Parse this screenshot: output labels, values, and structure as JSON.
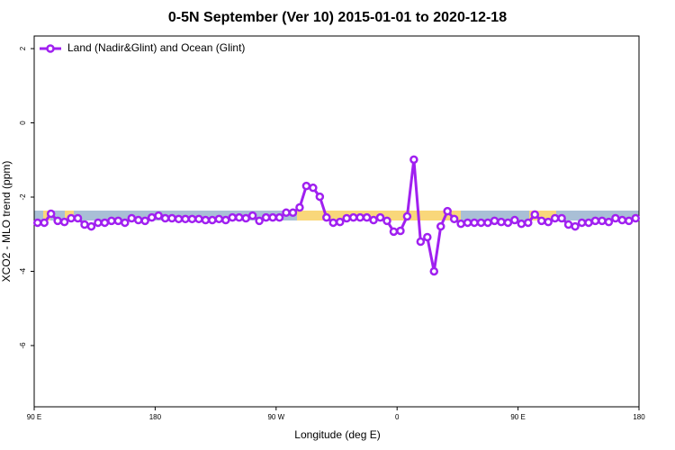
{
  "chart_data": {
    "type": "line",
    "title": "0-5N September (Ver 10)   2015-01-01 to 2020-12-18",
    "x_label": "Longitude (deg E)",
    "y_label": "XCO2 - MLO trend (ppm)",
    "xlim": [
      90,
      540
    ],
    "ylim": [
      -7.65,
      2.34
    ],
    "xticks": [
      {
        "value": 90,
        "label": "90 E"
      },
      {
        "value": 180,
        "label": "180"
      },
      {
        "value": 270,
        "label": "90 W"
      },
      {
        "value": 360,
        "label": "0"
      },
      {
        "value": 450,
        "label": "90 E"
      },
      {
        "value": 540,
        "label": "180"
      }
    ],
    "yticks": [
      -6,
      -4,
      -2,
      0,
      2
    ],
    "legend": "top-left",
    "x": [
      92.5,
      97.5,
      102.5,
      107.5,
      112.5,
      117.5,
      122.5,
      127.5,
      132.5,
      137.5,
      142.5,
      147.5,
      152.5,
      157.5,
      162.5,
      167.5,
      172.5,
      177.5,
      182.5,
      187.5,
      192.5,
      197.5,
      202.5,
      207.5,
      212.5,
      217.5,
      222.5,
      227.5,
      232.5,
      237.5,
      242.5,
      247.5,
      252.5,
      257.5,
      262.5,
      267.5,
      272.5,
      277.5,
      282.5,
      287.5,
      292.5,
      297.5,
      302.5,
      307.5,
      312.5,
      317.5,
      322.5,
      327.5,
      332.5,
      337.5,
      342.5,
      347.5,
      352.5,
      357.5,
      362.5,
      367.5,
      372.5,
      377.5,
      382.5,
      387.5,
      392.5,
      397.5,
      402.5,
      407.5,
      412.5,
      417.5,
      422.5,
      427.5,
      432.5,
      437.5,
      442.5,
      447.5,
      452.5,
      457.5,
      462.5,
      467.5,
      472.5,
      477.5,
      482.5,
      487.5,
      492.5,
      497.5,
      502.5,
      507.5,
      512.5,
      517.5,
      522.5,
      527.5,
      532.5,
      537.5
    ],
    "series": [
      {
        "name": "Land (Nadir&Glint) and Ocean (Glint)",
        "color": "#a020f0",
        "values": [
          -2.69,
          -2.69,
          -2.45,
          -2.64,
          -2.67,
          -2.57,
          -2.57,
          -2.74,
          -2.79,
          -2.69,
          -2.69,
          -2.64,
          -2.64,
          -2.69,
          -2.57,
          -2.62,
          -2.64,
          -2.55,
          -2.5,
          -2.57,
          -2.57,
          -2.59,
          -2.59,
          -2.59,
          -2.59,
          -2.62,
          -2.62,
          -2.59,
          -2.62,
          -2.55,
          -2.55,
          -2.57,
          -2.5,
          -2.64,
          -2.55,
          -2.55,
          -2.55,
          -2.42,
          -2.42,
          -2.28,
          -1.7,
          -1.75,
          -1.99,
          -2.55,
          -2.69,
          -2.67,
          -2.57,
          -2.55,
          -2.55,
          -2.55,
          -2.62,
          -2.55,
          -2.64,
          -2.93,
          -2.91,
          -2.52,
          -0.99,
          -3.2,
          -3.08,
          -4.0,
          -2.79,
          -2.38,
          -2.59,
          -2.72,
          -2.69,
          -2.69,
          -2.69,
          -2.69,
          -2.64,
          -2.67,
          -2.69,
          -2.62,
          -2.72,
          -2.69,
          -2.47,
          -2.64,
          -2.67,
          -2.57,
          -2.57,
          -2.74,
          -2.79,
          -2.69,
          -2.69,
          -2.64,
          -2.64,
          -2.67,
          -2.57,
          -2.62,
          -2.64,
          -2.57
        ]
      }
    ]
  }
}
